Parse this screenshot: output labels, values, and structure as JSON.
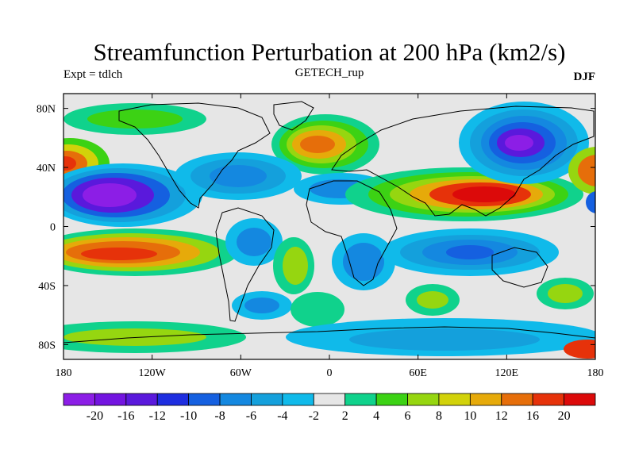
{
  "chart_data": {
    "type": "heatmap",
    "title": "Streamfunction Perturbation at 200 hPa (km2/s)",
    "subtitle_left": "Expt = tdlch",
    "subtitle_center": "GETECH_rup",
    "subtitle_right": "DJF",
    "x_ticks": [
      "180",
      "120W",
      "60W",
      "0",
      "60E",
      "120E",
      "180"
    ],
    "y_ticks": [
      "80N",
      "40N",
      "0",
      "40S",
      "80S"
    ],
    "lon_range": [
      -180,
      180
    ],
    "lat_range": [
      -90,
      90
    ],
    "colorbar": {
      "labels": [
        "-20",
        "-16",
        "-12",
        "-10",
        "-8",
        "-6",
        "-4",
        "-2",
        "2",
        "4",
        "6",
        "8",
        "10",
        "12",
        "16",
        "20"
      ],
      "colors": [
        "#8c1ee6",
        "#7314e0",
        "#5a19dc",
        "#1e2ee0",
        "#1560e0",
        "#1488e0",
        "#14a0dc",
        "#10baea",
        "#e6e6e6",
        "#10d28c",
        "#3cd214",
        "#96d610",
        "#d2d20a",
        "#e6aa0a",
        "#e66e0a",
        "#e6320a",
        "#dc0a0a"
      ]
    },
    "features": [
      {
        "name": "anticyclone-europe",
        "lon": -10,
        "lat": 58,
        "value": 14
      },
      {
        "name": "cyclone-east-asia",
        "lon": 135,
        "lat": 52,
        "value": -18
      },
      {
        "name": "anticyclone-north-pacific",
        "lon": -175,
        "lat": 42,
        "value": 12
      },
      {
        "name": "cyclone-central-pacific",
        "lon": -145,
        "lat": 22,
        "value": -18
      },
      {
        "name": "anticyclone-asia",
        "lon": 100,
        "lat": 22,
        "value": 18
      },
      {
        "name": "anticyclone-south-pacific",
        "lon": -145,
        "lat": -18,
        "value": 14
      },
      {
        "name": "cyclone-indian-ocean",
        "lon": 90,
        "lat": -18,
        "value": -10
      }
    ]
  }
}
